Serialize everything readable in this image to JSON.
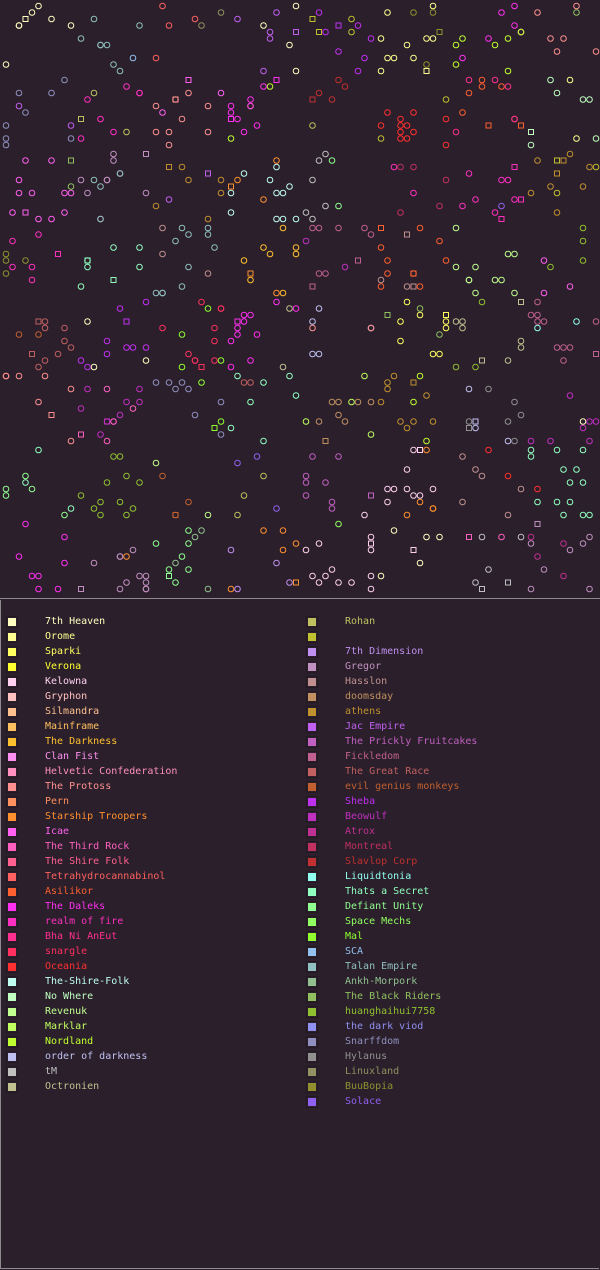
{
  "legend": {
    "left": [
      {
        "name": "7th Heaven",
        "color": "#ffffc0"
      },
      {
        "name": "Orome",
        "color": "#ffff90"
      },
      {
        "name": "Sparki",
        "color": "#ffff60"
      },
      {
        "name": "Verona",
        "color": "#ffff30"
      },
      {
        "name": "Kelowna",
        "color": "#ffd0f0"
      },
      {
        "name": "Gryphon",
        "color": "#ffc0c0"
      },
      {
        "name": "Silmandra",
        "color": "#ffc090"
      },
      {
        "name": "Mainframe",
        "color": "#ffc060"
      },
      {
        "name": "The Darkness",
        "color": "#ffc030"
      },
      {
        "name": "Clan Fist",
        "color": "#ff90f0"
      },
      {
        "name": "Helvetic Confederation",
        "color": "#ff90c0"
      },
      {
        "name": "The Protoss",
        "color": "#ff9090"
      },
      {
        "name": "Pern",
        "color": "#ff9060"
      },
      {
        "name": "Starship Troopers",
        "color": "#ff9030"
      },
      {
        "name": "Icae",
        "color": "#ff60f0"
      },
      {
        "name": "The Third Rock",
        "color": "#ff60c0"
      },
      {
        "name": "The Shire Folk",
        "color": "#ff6090"
      },
      {
        "name": "Tetrahydrocannabinol",
        "color": "#ff6060"
      },
      {
        "name": "Asilikor",
        "color": "#ff6030"
      },
      {
        "name": "The Daleks",
        "color": "#ff30f0"
      },
      {
        "name": "realm of fire",
        "color": "#ff30c0"
      },
      {
        "name": "Bha Ni AnEut",
        "color": "#ff3090"
      },
      {
        "name": "snargle",
        "color": "#ff3060"
      },
      {
        "name": "Oceania",
        "color": "#ff3030"
      },
      {
        "name": "The-Shire-Folk",
        "color": "#c0fff0"
      },
      {
        "name": "No Where",
        "color": "#c0ffc0"
      },
      {
        "name": "Revenuk",
        "color": "#c0ff90"
      },
      {
        "name": "Marklar",
        "color": "#c0ff60"
      },
      {
        "name": "Nordland",
        "color": "#c0ff30"
      },
      {
        "name": "order of darkness",
        "color": "#c0c0f0"
      },
      {
        "name": "tM",
        "color": "#c0c0c0"
      },
      {
        "name": "Octronien",
        "color": "#c0c090"
      }
    ],
    "right": [
      {
        "name": "Rohan",
        "color": "#c0c060"
      },
      {
        "name": "",
        "color": "#c0c030"
      },
      {
        "name": "7th Dimension",
        "color": "#c090f0"
      },
      {
        "name": "Gregor",
        "color": "#c090c0"
      },
      {
        "name": "Hasslon",
        "color": "#c09090"
      },
      {
        "name": "doomsday",
        "color": "#c09060"
      },
      {
        "name": "athens",
        "color": "#c09030"
      },
      {
        "name": "Jac Empire",
        "color": "#c060f0"
      },
      {
        "name": "The Prickly Fruitcakes",
        "color": "#c060c0"
      },
      {
        "name": "Fickledom",
        "color": "#c06090"
      },
      {
        "name": "The Great Race",
        "color": "#c06060"
      },
      {
        "name": "evil genius monkeys",
        "color": "#c06030"
      },
      {
        "name": "Sheba",
        "color": "#c030f0"
      },
      {
        "name": "Beowulf",
        "color": "#c030c0"
      },
      {
        "name": "Atrox",
        "color": "#c03090"
      },
      {
        "name": "Montreal",
        "color": "#c03060"
      },
      {
        "name": "Slavlop Corp",
        "color": "#c03030"
      },
      {
        "name": "Liquidtonia",
        "color": "#90fff0"
      },
      {
        "name": "Thats a Secret",
        "color": "#90ffc0"
      },
      {
        "name": "Defiant Unity",
        "color": "#90ff90"
      },
      {
        "name": "Space Mechs",
        "color": "#90ff60"
      },
      {
        "name": "Mal",
        "color": "#90ff30"
      },
      {
        "name": "SCA",
        "color": "#90c0f0"
      },
      {
        "name": "Talan Empire",
        "color": "#90c0c0"
      },
      {
        "name": "Ankh-Morpork",
        "color": "#90c090"
      },
      {
        "name": "The Black Riders",
        "color": "#90c060"
      },
      {
        "name": "huanghaihui7758",
        "color": "#90c030"
      },
      {
        "name": "the dark viod",
        "color": "#9090f0"
      },
      {
        "name": "Snarffdom",
        "color": "#9090c0"
      },
      {
        "name": "Hylanus",
        "color": "#909090"
      },
      {
        "name": "Linuxland",
        "color": "#909060"
      },
      {
        "name": "BuuBopia",
        "color": "#909030"
      },
      {
        "name": "Solace",
        "color": "#9060f0"
      }
    ]
  }
}
